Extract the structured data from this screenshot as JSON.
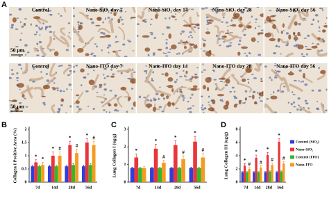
{
  "figure": {
    "panel_a": {
      "label": "A",
      "scale": "50 μm",
      "rows": [
        [
          "Control",
          "Nano-SiO₂ day 7",
          "Nano-SiO₂ day 14",
          "Nano-SiO₂ day 28",
          "Nano-SiO₂ day 56"
        ],
        [
          "Control",
          "Nano-ITO day 7",
          "Nano-ITO day 14",
          "Nano-ITO day 28",
          "Nano-ITO day 56"
        ]
      ]
    }
  },
  "chart_data": [
    {
      "type": "bar",
      "panel": "B",
      "y_label": "Collagen I Positive Area (%)",
      "categories": [
        "7d",
        "14d",
        "28d",
        "56d"
      ],
      "ylim": [
        0,
        2
      ],
      "yticks": [
        0,
        0.5,
        1,
        1.5,
        2
      ],
      "series": [
        {
          "color": "#2e3fd8",
          "values": [
            0.6,
            0.6,
            0.6,
            0.6
          ],
          "errors": [
            0.05,
            0.05,
            0.05,
            0.05
          ]
        },
        {
          "color": "#e8373c",
          "values": [
            0.75,
            1.0,
            1.4,
            1.5
          ],
          "errors": [
            0.1,
            0.15,
            0.15,
            0.15
          ],
          "marks": [
            "*",
            "*",
            "*",
            "*"
          ]
        },
        {
          "color": "#2fb82f",
          "values": [
            0.6,
            0.6,
            0.65,
            0.65
          ],
          "errors": [
            0.05,
            0.05,
            0.05,
            0.05
          ]
        },
        {
          "color": "#f59a22",
          "values": [
            0.65,
            1.0,
            1.1,
            1.4
          ],
          "errors": [
            0.1,
            0.15,
            0.15,
            0.15
          ],
          "marks": [
            "*",
            "#",
            "#",
            "#"
          ]
        }
      ]
    },
    {
      "type": "bar",
      "panel": "C",
      "y_label": "Lung Collagen I (ug/g)",
      "categories": [
        "7d",
        "14d",
        "28d",
        "56d"
      ],
      "ylim": [
        0,
        3
      ],
      "yticks": [
        0,
        1,
        2,
        3
      ],
      "series": [
        {
          "color": "#2e3fd8",
          "values": [
            0.8,
            0.8,
            0.8,
            0.8
          ],
          "errors": [
            0.05,
            0.05,
            0.05,
            0.05
          ]
        },
        {
          "color": "#e8373c",
          "values": [
            1.4,
            1.9,
            2.1,
            2.3
          ],
          "errors": [
            0.2,
            0.25,
            0.25,
            0.3
          ],
          "marks": [
            "*",
            "*",
            "*",
            "*"
          ]
        },
        {
          "color": "#2fb82f",
          "values": [
            0.8,
            0.8,
            0.8,
            0.8
          ],
          "errors": [
            0.05,
            0.05,
            0.05,
            0.05
          ]
        },
        {
          "color": "#f59a22",
          "values": [
            0.8,
            1.1,
            1.3,
            1.4
          ],
          "errors": [
            0.1,
            0.15,
            0.2,
            0.25
          ],
          "marks": [
            null,
            "#",
            "#",
            "#"
          ]
        }
      ]
    },
    {
      "type": "bar",
      "panel": "D",
      "y_label": "Lung Collagen III (ug/g)",
      "categories": [
        "7d",
        "14d",
        "28d",
        "56d"
      ],
      "ylim": [
        0,
        8
      ],
      "yticks": [
        0,
        2,
        4,
        6,
        8
      ],
      "series": [
        {
          "name": "Control (SiO₂)",
          "color": "#2e3fd8",
          "values": [
            1.5,
            1.5,
            1.5,
            1.5
          ],
          "errors": [
            0.1,
            0.1,
            0.1,
            0.1
          ]
        },
        {
          "name": "Nano-SiO₂",
          "color": "#e8373c",
          "values": [
            2.5,
            3.7,
            4.1,
            6.1
          ],
          "errors": [
            0.3,
            0.4,
            0.4,
            0.5
          ],
          "marks": [
            "*",
            "*",
            "*",
            "*"
          ]
        },
        {
          "name": "Control (ITO)",
          "color": "#2fb82f",
          "values": [
            1.5,
            1.5,
            1.6,
            1.6
          ],
          "errors": [
            0.1,
            0.1,
            0.1,
            0.1
          ]
        },
        {
          "name": "Nano-ITO",
          "color": "#f59a22",
          "values": [
            2.0,
            2.2,
            2.6,
            2.8
          ],
          "errors": [
            0.2,
            0.3,
            0.3,
            0.3
          ],
          "marks": [
            "#",
            "#",
            "#",
            "#"
          ]
        }
      ]
    }
  ]
}
